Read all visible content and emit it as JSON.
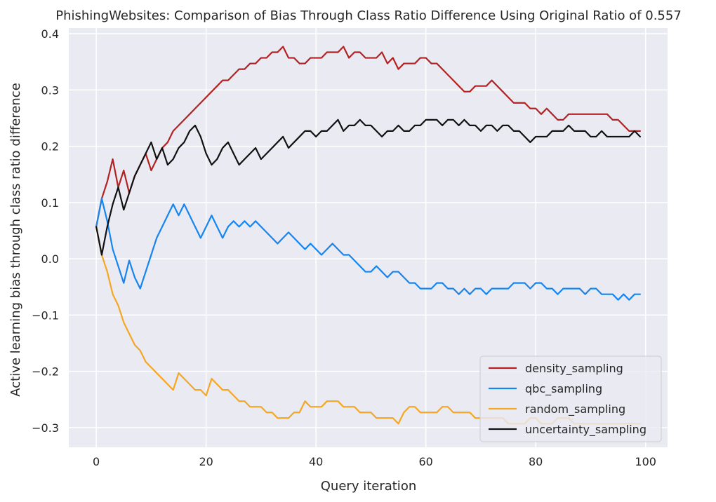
{
  "chart_data": {
    "type": "line",
    "title": "PhishingWebsites: Comparison of Bias Through Class Ratio Difference Using Original Ratio of 0.557",
    "xlabel": "Query iteration",
    "ylabel": "Active learning bias through class ratio difference",
    "xlim": [
      -5,
      104
    ],
    "ylim": [
      -0.335,
      0.41
    ],
    "x_ticks": [
      0,
      20,
      40,
      60,
      80,
      100
    ],
    "y_ticks": [
      -0.3,
      -0.2,
      -0.1,
      0.0,
      0.1,
      0.2,
      0.3,
      0.4
    ],
    "x_tick_labels": [
      "0",
      "20",
      "40",
      "60",
      "80",
      "100"
    ],
    "y_tick_labels": [
      "−0.3",
      "−0.2",
      "−0.1",
      "0.0",
      "0.1",
      "0.2",
      "0.3",
      "0.4"
    ],
    "grid": true,
    "legend_position": "lower-right",
    "background": "#eaeaf2",
    "x": [
      0,
      1,
      2,
      3,
      4,
      5,
      6,
      7,
      8,
      9,
      10,
      11,
      12,
      13,
      14,
      15,
      16,
      17,
      18,
      19,
      20,
      21,
      22,
      23,
      24,
      25,
      26,
      27,
      28,
      29,
      30,
      31,
      32,
      33,
      34,
      35,
      36,
      37,
      38,
      39,
      40,
      41,
      42,
      43,
      44,
      45,
      46,
      47,
      48,
      49,
      50,
      51,
      52,
      53,
      54,
      55,
      56,
      57,
      58,
      59,
      60,
      61,
      62,
      63,
      64,
      65,
      66,
      67,
      68,
      69,
      70,
      71,
      72,
      73,
      74,
      75,
      76,
      77,
      78,
      79,
      80,
      81,
      82,
      83,
      84,
      85,
      86,
      87,
      88,
      89,
      90,
      91,
      92,
      93,
      94,
      95,
      96,
      97,
      98,
      99
    ],
    "series": [
      {
        "name": "density_sampling",
        "color": "#b22222",
        "values": [
          0.057,
          0.107,
          0.137,
          0.177,
          0.127,
          0.157,
          0.117,
          0.147,
          0.167,
          0.187,
          0.157,
          0.177,
          0.197,
          0.207,
          0.227,
          0.237,
          0.247,
          0.257,
          0.267,
          0.277,
          0.287,
          0.297,
          0.307,
          0.317,
          0.317,
          0.327,
          0.337,
          0.337,
          0.347,
          0.347,
          0.357,
          0.357,
          0.367,
          0.367,
          0.377,
          0.357,
          0.357,
          0.347,
          0.347,
          0.357,
          0.357,
          0.357,
          0.367,
          0.367,
          0.367,
          0.377,
          0.357,
          0.367,
          0.367,
          0.357,
          0.357,
          0.357,
          0.367,
          0.347,
          0.357,
          0.337,
          0.347,
          0.347,
          0.347,
          0.357,
          0.357,
          0.347,
          0.347,
          0.337,
          0.327,
          0.317,
          0.307,
          0.297,
          0.297,
          0.307,
          0.307,
          0.307,
          0.317,
          0.307,
          0.297,
          0.287,
          0.277,
          0.277,
          0.277,
          0.267,
          0.267,
          0.257,
          0.267,
          0.257,
          0.247,
          0.247,
          0.257,
          0.257,
          0.257,
          0.257,
          0.257,
          0.257,
          0.257,
          0.257,
          0.247,
          0.247,
          0.237,
          0.227,
          0.227,
          0.227
        ]
      },
      {
        "name": "qbc_sampling",
        "color": "#1685f0",
        "values": [
          0.057,
          0.107,
          0.067,
          0.017,
          -0.013,
          -0.043,
          -0.003,
          -0.033,
          -0.053,
          -0.023,
          0.007,
          0.037,
          0.057,
          0.077,
          0.097,
          0.077,
          0.097,
          0.077,
          0.057,
          0.037,
          0.057,
          0.077,
          0.057,
          0.037,
          0.057,
          0.067,
          0.057,
          0.067,
          0.057,
          0.067,
          0.057,
          0.047,
          0.037,
          0.027,
          0.037,
          0.047,
          0.037,
          0.027,
          0.017,
          0.027,
          0.017,
          0.007,
          0.017,
          0.027,
          0.017,
          0.007,
          0.007,
          -0.003,
          -0.013,
          -0.023,
          -0.023,
          -0.013,
          -0.023,
          -0.033,
          -0.023,
          -0.023,
          -0.033,
          -0.043,
          -0.043,
          -0.053,
          -0.053,
          -0.053,
          -0.043,
          -0.043,
          -0.053,
          -0.053,
          -0.063,
          -0.053,
          -0.063,
          -0.053,
          -0.053,
          -0.063,
          -0.053,
          -0.053,
          -0.053,
          -0.053,
          -0.043,
          -0.043,
          -0.043,
          -0.053,
          -0.043,
          -0.043,
          -0.053,
          -0.053,
          -0.063,
          -0.053,
          -0.053,
          -0.053,
          -0.053,
          -0.063,
          -0.053,
          -0.053,
          -0.063,
          -0.063,
          -0.063,
          -0.073,
          -0.063,
          -0.073,
          -0.063,
          -0.063
        ]
      },
      {
        "name": "random_sampling",
        "color": "#f5a623",
        "values": [
          0.057,
          0.007,
          -0.023,
          -0.063,
          -0.083,
          -0.113,
          -0.133,
          -0.153,
          -0.163,
          -0.183,
          -0.193,
          -0.203,
          -0.213,
          -0.223,
          -0.233,
          -0.203,
          -0.213,
          -0.223,
          -0.233,
          -0.233,
          -0.243,
          -0.213,
          -0.223,
          -0.233,
          -0.233,
          -0.243,
          -0.253,
          -0.253,
          -0.263,
          -0.263,
          -0.263,
          -0.273,
          -0.273,
          -0.283,
          -0.283,
          -0.283,
          -0.273,
          -0.273,
          -0.253,
          -0.263,
          -0.263,
          -0.263,
          -0.253,
          -0.253,
          -0.253,
          -0.263,
          -0.263,
          -0.263,
          -0.273,
          -0.273,
          -0.273,
          -0.283,
          -0.283,
          -0.283,
          -0.283,
          -0.293,
          -0.273,
          -0.263,
          -0.263,
          -0.273,
          -0.273,
          -0.273,
          -0.273,
          -0.263,
          -0.263,
          -0.273,
          -0.273,
          -0.273,
          -0.273,
          -0.283,
          -0.283,
          -0.283,
          -0.283,
          -0.283,
          -0.283,
          -0.293,
          -0.293,
          -0.293,
          -0.293,
          -0.283,
          -0.283,
          -0.293,
          -0.293,
          -0.293,
          -0.283,
          -0.283,
          -0.283,
          -0.293,
          -0.293,
          -0.293,
          -0.293,
          -0.293,
          -0.293,
          -0.293,
          -0.293,
          -0.293,
          -0.293,
          -0.293,
          -0.293,
          -0.293
        ]
      },
      {
        "name": "uncertainty_sampling",
        "color": "#111111",
        "values": [
          0.057,
          0.007,
          0.057,
          0.097,
          0.127,
          0.087,
          0.117,
          0.147,
          0.167,
          0.187,
          0.207,
          0.177,
          0.197,
          0.167,
          0.177,
          0.197,
          0.207,
          0.227,
          0.237,
          0.217,
          0.187,
          0.167,
          0.177,
          0.197,
          0.207,
          0.187,
          0.167,
          0.177,
          0.187,
          0.197,
          0.177,
          0.187,
          0.197,
          0.207,
          0.217,
          0.197,
          0.207,
          0.217,
          0.227,
          0.227,
          0.217,
          0.227,
          0.227,
          0.237,
          0.247,
          0.227,
          0.237,
          0.237,
          0.247,
          0.237,
          0.237,
          0.227,
          0.217,
          0.227,
          0.227,
          0.237,
          0.227,
          0.227,
          0.237,
          0.237,
          0.247,
          0.247,
          0.247,
          0.237,
          0.247,
          0.247,
          0.237,
          0.247,
          0.237,
          0.237,
          0.227,
          0.237,
          0.237,
          0.227,
          0.237,
          0.237,
          0.227,
          0.227,
          0.217,
          0.207,
          0.217,
          0.217,
          0.217,
          0.227,
          0.227,
          0.227,
          0.237,
          0.227,
          0.227,
          0.227,
          0.217,
          0.217,
          0.227,
          0.217,
          0.217,
          0.217,
          0.217,
          0.217,
          0.227,
          0.217
        ]
      }
    ]
  }
}
